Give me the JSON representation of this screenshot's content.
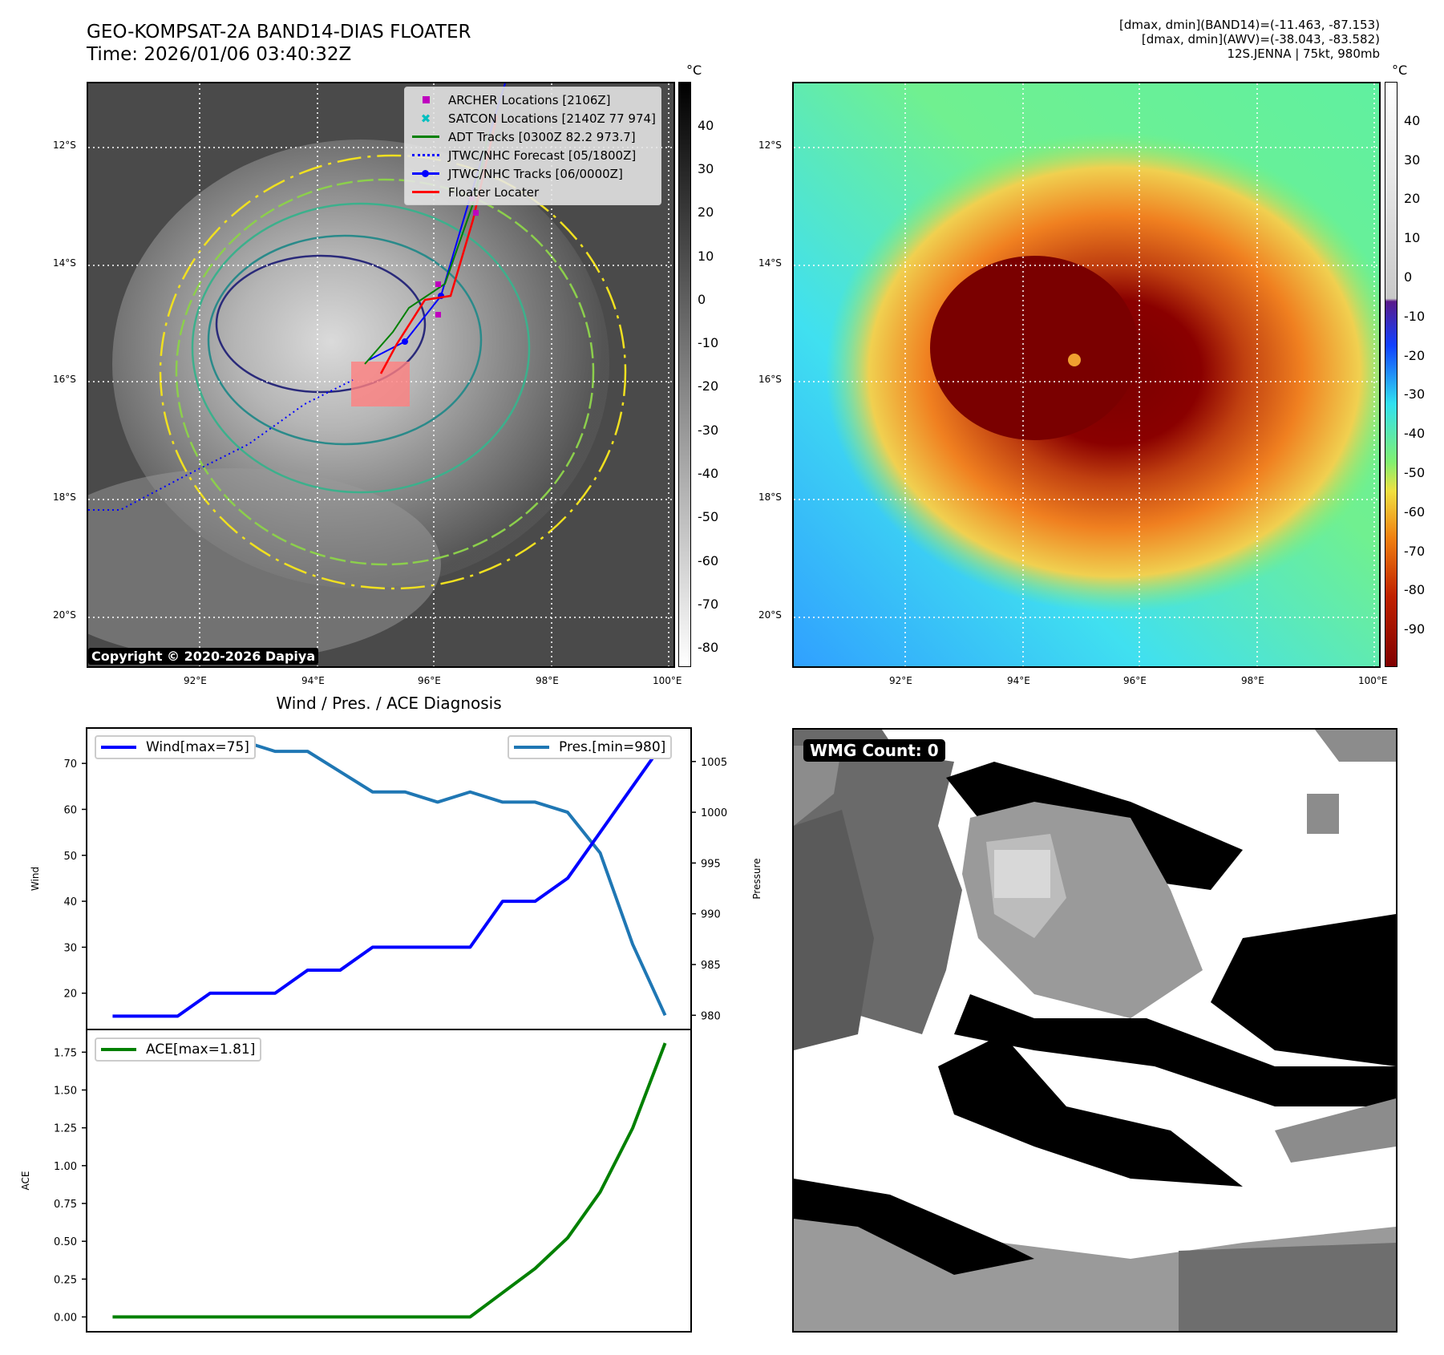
{
  "header": {
    "title_line1": "GEO-KOMPSAT-2A BAND14-DIAS FLOATER",
    "title_line2": "Time: 2026/01/06 03:40:32Z",
    "info_line1": "[dmax, dmin](BAND14)=(-11.463, -87.153)",
    "info_line2": "[dmax, dmin](AWV)=(-38.043, -83.582)",
    "info_line3": "12S.JENNA | 75kt, 980mb"
  },
  "maps": {
    "lat_labels": [
      "12°S",
      "14°S",
      "16°S",
      "18°S",
      "20°S"
    ],
    "lon_labels": [
      "92°E",
      "94°E",
      "96°E",
      "98°E",
      "100°E"
    ],
    "colorbar_unit": "°C",
    "colorbar1_ticks": [
      40,
      30,
      20,
      10,
      0,
      -10,
      -20,
      -30,
      -40,
      -50,
      -60,
      -70,
      -80
    ],
    "colorbar2_ticks": [
      40,
      30,
      20,
      10,
      0,
      -10,
      -20,
      -30,
      -40,
      -50,
      -60,
      -70,
      -80,
      -90
    ],
    "copyright": "Copyright © 2020-2026 Dapiya",
    "legend": [
      {
        "label": "ARCHER Locations [2106Z]",
        "icon": "square-marker",
        "color": "#bf00bf"
      },
      {
        "label": "SATCON Locations [2140Z 77 974]",
        "icon": "x-marker",
        "color": "#00bfbf"
      },
      {
        "label": "ADT Tracks [0300Z 82.2 973.7]",
        "icon": "solid-line",
        "color": "#008000"
      },
      {
        "label": "JTWC/NHC Forecast [05/1800Z]",
        "icon": "dotted-line",
        "color": "#0000ff"
      },
      {
        "label": "JTWC/NHC Tracks [06/0000Z]",
        "icon": "line-dot",
        "color": "#0000ff"
      },
      {
        "label": "Floater Locater",
        "icon": "solid-line",
        "color": "#ff0000"
      }
    ]
  },
  "wmg": {
    "label": "WMG Count: 0"
  },
  "chart_data": [
    {
      "type": "line",
      "title": "Wind / Pres. / ACE Diagnosis",
      "x": [
        0,
        1,
        2,
        3,
        4,
        5,
        6,
        7,
        8,
        9,
        10,
        11,
        12,
        13,
        14,
        15,
        16,
        17
      ],
      "xlim": [
        -0.8,
        17.8
      ],
      "series": [
        {
          "name": "Wind[max=75]",
          "axis": "left",
          "color": "#0000ff",
          "values": [
            15,
            15,
            15,
            20,
            20,
            20,
            25,
            25,
            30,
            30,
            30,
            30,
            40,
            40,
            45,
            55,
            65,
            75
          ]
        },
        {
          "name": "Pres.[min=980]",
          "axis": "right",
          "color": "#1f77b4",
          "values": [
            1007,
            1007,
            1007,
            1007,
            1007,
            1006,
            1006,
            1004,
            1002,
            1002,
            1001,
            1002,
            1001,
            1001,
            1000,
            996,
            987,
            980
          ]
        }
      ],
      "ylabel": "Wind",
      "ylabel_right": "Pressure",
      "ylim": [
        12.1,
        77.7
      ],
      "ylim_right": [
        978.6,
        1008.3
      ],
      "yticks": [
        20,
        30,
        40,
        50,
        60,
        70
      ],
      "yticks_right": [
        980,
        985,
        990,
        995,
        1000,
        1005
      ],
      "legend": [
        "top-left",
        "top-right"
      ]
    },
    {
      "type": "line",
      "x": [
        0,
        1,
        2,
        3,
        4,
        5,
        6,
        7,
        8,
        9,
        10,
        11,
        12,
        13,
        14,
        15,
        16,
        17
      ],
      "xlim": [
        -0.8,
        17.8
      ],
      "series": [
        {
          "name": "ACE[max=1.81]",
          "color": "#008000",
          "values": [
            0,
            0,
            0,
            0,
            0,
            0,
            0,
            0,
            0,
            0,
            0,
            0,
            0.16,
            0.32,
            0.5225,
            0.825,
            1.2475,
            1.81
          ]
        }
      ],
      "ylabel": "ACE",
      "ylim": [
        -0.098,
        1.9
      ],
      "yticks": [
        "0.00",
        "0.25",
        "0.50",
        "0.75",
        "1.00",
        "1.25",
        "1.50",
        "1.75"
      ],
      "legend": "top-left"
    }
  ]
}
